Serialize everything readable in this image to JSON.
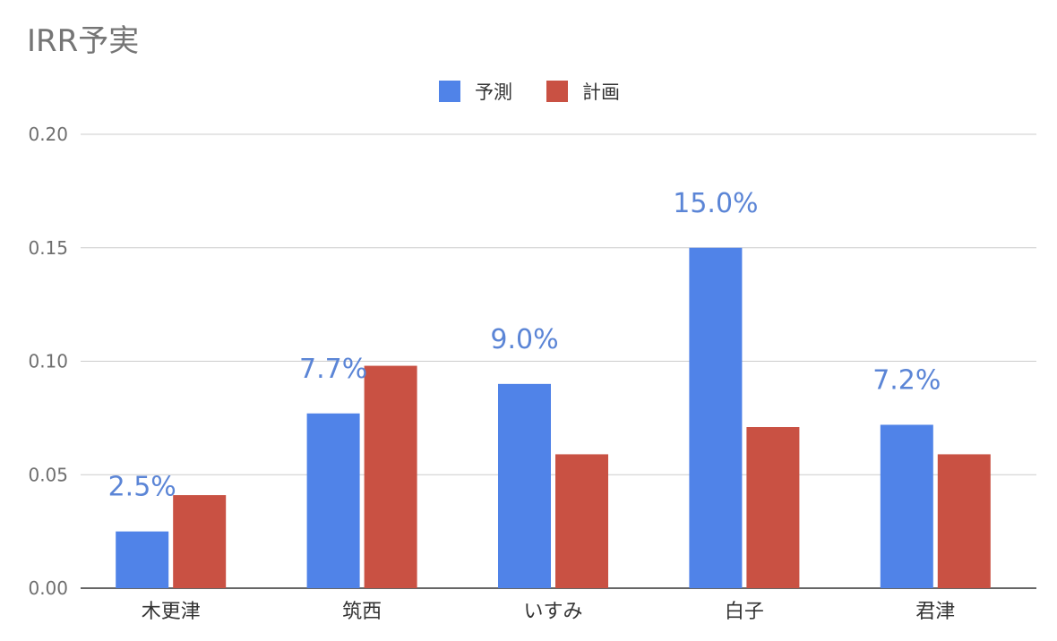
{
  "chart_data": {
    "type": "bar",
    "title": "IRR予実",
    "xlabel": "",
    "ylabel": "",
    "categories": [
      "木更津",
      "筑西",
      "いすみ",
      "白子",
      "君津"
    ],
    "series": [
      {
        "name": "予測",
        "color": "#5083e8",
        "values": [
          0.025,
          0.077,
          0.09,
          0.15,
          0.072
        ]
      },
      {
        "name": "計画",
        "color": "#c95143",
        "values": [
          0.041,
          0.098,
          0.059,
          0.071,
          0.059
        ]
      }
    ],
    "data_labels": [
      "2.5%",
      "7.7%",
      "9.0%",
      "15.0%",
      "7.2%"
    ],
    "data_label_color": "#5b85d6",
    "ylim": [
      0,
      0.2
    ],
    "yticks": [
      "0.00",
      "0.05",
      "0.10",
      "0.15",
      "0.20"
    ],
    "grid": true,
    "legend_position": "top-center"
  }
}
